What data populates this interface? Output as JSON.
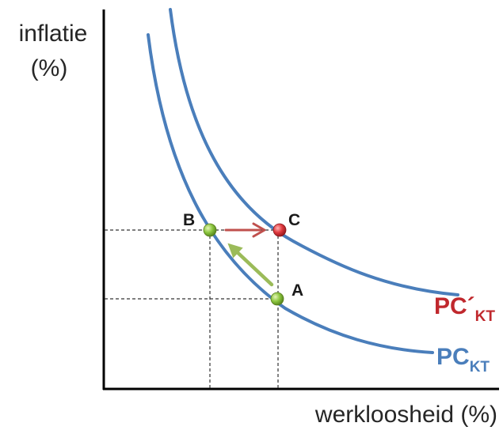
{
  "axes": {
    "y_label_line1": "inflatie",
    "y_label_line2": "(%)",
    "x_label": "werkloosheid (%)"
  },
  "curves": [
    {
      "id": "pc-kt",
      "label_main": "PC",
      "label_sub": "KT",
      "color": "#4a7ebb"
    },
    {
      "id": "pc-kt-shifted",
      "label_main": "PC´",
      "label_sub": "KT",
      "color": "#c0282d"
    }
  ],
  "points": {
    "a": {
      "label": "A",
      "color": "#8cc63f"
    },
    "b": {
      "label": "B",
      "color": "#8cc63f"
    },
    "c": {
      "label": "C",
      "color": "#e0393e"
    }
  },
  "arrows": {
    "a_to_b": {
      "color": "#9bbb59"
    },
    "b_to_c": {
      "color": "#c0504d"
    }
  },
  "colors": {
    "axis": "#000000",
    "curve": "#4a7ebb",
    "guide_lines": "#333333"
  }
}
